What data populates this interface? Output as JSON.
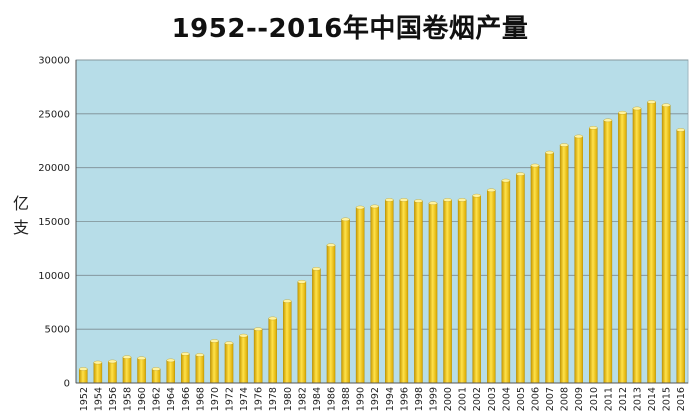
{
  "chart_data": {
    "type": "bar",
    "title": "1952--2016年中国卷烟产量",
    "ylabel_chars": [
      "亿",
      "支"
    ],
    "ylim": [
      0,
      30000
    ],
    "yticks": [
      0,
      5000,
      10000,
      15000,
      20000,
      25000,
      30000
    ],
    "grid": true,
    "plot_background": "#b7dde8",
    "bar_color": "#f2c400",
    "categories": [
      "1952",
      "1954",
      "1956",
      "1958",
      "1960",
      "1962",
      "1964",
      "1966",
      "1968",
      "1970",
      "1972",
      "1974",
      "1976",
      "1978",
      "1980",
      "1982",
      "1984",
      "1986",
      "1988",
      "1990",
      "1992",
      "1994",
      "1996",
      "1998",
      "1999",
      "2000",
      "2001",
      "2002",
      "2003",
      "2004",
      "2005",
      "2006",
      "2007",
      "2008",
      "2009",
      "2010",
      "2011",
      "2012",
      "2013",
      "2014",
      "2015",
      "2016"
    ],
    "values": [
      1300,
      1900,
      2000,
      2400,
      2300,
      1300,
      2100,
      2700,
      2600,
      3900,
      3700,
      4400,
      5000,
      6000,
      7600,
      9400,
      10600,
      12800,
      15200,
      16300,
      16400,
      17000,
      17000,
      16900,
      16700,
      17000,
      17000,
      17400,
      17900,
      18800,
      19400,
      20200,
      21400,
      22100,
      22900,
      23700,
      24400,
      25100,
      25500,
      26100,
      25800,
      23500
    ]
  }
}
